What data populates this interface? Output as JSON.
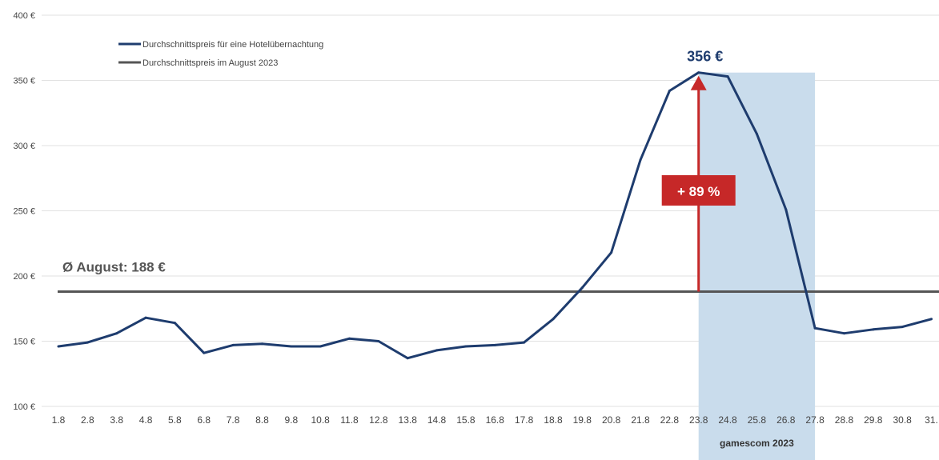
{
  "chart_data": {
    "type": "line",
    "categories": [
      "1.8",
      "2.8",
      "3.8",
      "4.8",
      "5.8",
      "6.8",
      "7.8",
      "8.8",
      "9.8",
      "10.8",
      "11.8",
      "12.8",
      "13.8",
      "14.8",
      "15.8",
      "16.8",
      "17.8",
      "18.8",
      "19.8",
      "20.8",
      "21.8",
      "22.8",
      "23.8",
      "24.8",
      "25.8",
      "26.8",
      "27.8",
      "28.8",
      "29.8",
      "30.8",
      "31."
    ],
    "series": [
      {
        "name": "Durchschnittspreis für eine Hotelübernachtung",
        "color": "#1e3c6e",
        "values": [
          146,
          149,
          156,
          168,
          164,
          141,
          147,
          148,
          146,
          146,
          152,
          150,
          137,
          143,
          146,
          147,
          149,
          167,
          191,
          218,
          289,
          342,
          356,
          353,
          309,
          251,
          160,
          156,
          159,
          161,
          167
        ]
      },
      {
        "name": "Durchschnittspreis im August 2023",
        "color": "#555555",
        "constant": 188
      }
    ],
    "ylim": [
      100,
      400
    ],
    "yticks": [
      "100 €",
      "150 €",
      "200 €",
      "250 €",
      "300 €",
      "350 €",
      "400 €"
    ],
    "ytick_values": [
      100,
      150,
      200,
      250,
      300,
      350,
      400
    ],
    "grid": true,
    "legend_position": "top-left",
    "annotations": {
      "average_label": "Ø August: 188 €",
      "peak_label": "356 €",
      "increase_label": "+ 89 %",
      "event_label": "gamescom 2023",
      "event_start": "23.8",
      "event_end": "27.8"
    },
    "colors": {
      "highlight_fill": "#c9dcec",
      "arrow": "#c62828"
    }
  }
}
